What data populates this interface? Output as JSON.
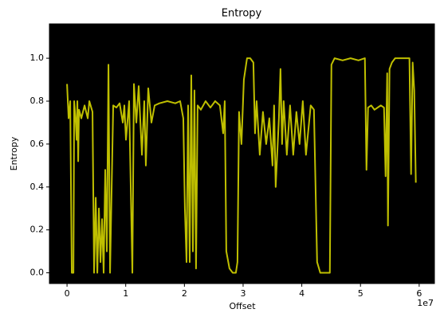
{
  "chart_data": {
    "type": "line",
    "title": "Entropy",
    "xlabel": "Offset",
    "ylabel": "Entropy",
    "x_offset_text": "1e7",
    "x": [
      0,
      0.027,
      0.054,
      0.081,
      0.109,
      0.122,
      0.149,
      0.163,
      0.176,
      0.19,
      0.204,
      0.244,
      0.299,
      0.353,
      0.38,
      0.434,
      0.461,
      0.489,
      0.516,
      0.543,
      0.57,
      0.597,
      0.624,
      0.651,
      0.678,
      0.706,
      0.733,
      0.787,
      0.841,
      0.896,
      0.95,
      0.977,
      1.004,
      1.058,
      1.113,
      1.14,
      1.181,
      1.221,
      1.276,
      1.316,
      1.343,
      1.384,
      1.438,
      1.493,
      1.574,
      1.71,
      1.845,
      1.927,
      1.981,
      2.008,
      2.036,
      2.063,
      2.09,
      2.117,
      2.144,
      2.171,
      2.198,
      2.225,
      2.28,
      2.361,
      2.443,
      2.524,
      2.605,
      2.66,
      2.687,
      2.714,
      2.768,
      2.823,
      2.877,
      2.904,
      2.931,
      2.972,
      3.013,
      3.067,
      3.121,
      3.175,
      3.203,
      3.23,
      3.284,
      3.338,
      3.393,
      3.447,
      3.501,
      3.528,
      3.555,
      3.61,
      3.637,
      3.664,
      3.691,
      3.745,
      3.8,
      3.854,
      3.908,
      3.962,
      4.017,
      4.071,
      4.152,
      4.207,
      4.261,
      4.315,
      4.424,
      4.478,
      4.505,
      4.559,
      4.695,
      4.831,
      4.966,
      5.075,
      5.102,
      5.129,
      5.183,
      5.238,
      5.346,
      5.401,
      5.428,
      5.455,
      5.468,
      5.495,
      5.536,
      5.59,
      5.726,
      5.834,
      5.862,
      5.889,
      5.916,
      5.943
    ],
    "values": [
      0.88,
      0.72,
      0.8,
      0,
      0,
      0.8,
      0.7,
      0.62,
      0.8,
      0.52,
      0.76,
      0.72,
      0.78,
      0.72,
      0.8,
      0.75,
      0,
      0.35,
      0,
      0.3,
      0.05,
      0.25,
      0,
      0.48,
      0.1,
      0.97,
      0,
      0.78,
      0.77,
      0.79,
      0.7,
      0.78,
      0.62,
      0.8,
      0,
      0.88,
      0.7,
      0.87,
      0.55,
      0.8,
      0.5,
      0.86,
      0.7,
      0.78,
      0.79,
      0.8,
      0.79,
      0.8,
      0.72,
      0.3,
      0.05,
      0.78,
      0.05,
      0.92,
      0.1,
      0.85,
      0.02,
      0.78,
      0.76,
      0.8,
      0.77,
      0.8,
      0.78,
      0.65,
      0.8,
      0.1,
      0.02,
      0,
      0,
      0.05,
      0.75,
      0.6,
      0.9,
      1,
      1,
      0.98,
      0.65,
      0.8,
      0.55,
      0.75,
      0.6,
      0.72,
      0.5,
      0.78,
      0.4,
      0.72,
      0.95,
      0.6,
      0.8,
      0.55,
      0.78,
      0.55,
      0.75,
      0.6,
      0.8,
      0.55,
      0.78,
      0.76,
      0.05,
      0,
      0,
      0,
      0.97,
      1,
      0.99,
      1,
      0.99,
      1,
      0.48,
      0.77,
      0.78,
      0.76,
      0.78,
      0.77,
      0.45,
      0.93,
      0.22,
      0.95,
      0.98,
      1,
      1,
      1,
      0.46,
      0.98,
      0.85,
      0.42
    ],
    "color": "#bfbf00",
    "xlim": [
      -0.3,
      6.26
    ],
    "xticks": [
      0,
      1,
      2,
      3,
      4,
      5,
      6
    ],
    "ylim": [
      -0.05,
      1.16
    ],
    "yticks": [
      {
        "value": 0,
        "label": "0.0"
      },
      {
        "value": 0.2,
        "label": "0.2"
      },
      {
        "value": 0.4,
        "label": "0.4"
      },
      {
        "value": 0.6,
        "label": "0.6"
      },
      {
        "value": 0.8,
        "label": "0.8"
      },
      {
        "value": 1,
        "label": "1.0"
      }
    ]
  }
}
